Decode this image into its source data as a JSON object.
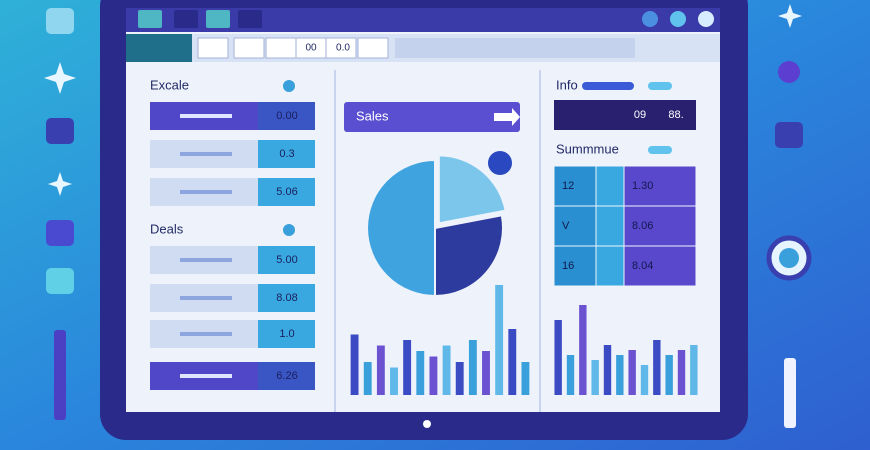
{
  "toolbar": {
    "cells": [
      "00",
      "0.0"
    ]
  },
  "left_panel": {
    "sections": [
      {
        "title": "Excale",
        "rows": [
          "0.00",
          "0.3",
          "5.06"
        ]
      },
      {
        "title": "Deals",
        "rows": [
          "5.00",
          "8.08",
          "1.0",
          "6.26"
        ]
      }
    ]
  },
  "middle_panel": {
    "button": "Sales",
    "pie": {
      "values": [
        50,
        28,
        22
      ],
      "colors": [
        "#3fa3e0",
        "#2d3a9e",
        "#7cc6ec"
      ]
    },
    "bars": {
      "values": [
        55,
        30,
        45,
        25,
        50,
        40,
        35,
        45,
        30,
        50,
        40,
        100,
        60,
        30
      ],
      "colors": [
        "#3a4bc4",
        "#3aa0dc",
        "#6a52d0",
        "#5fb8e8"
      ]
    }
  },
  "right_panel": {
    "info_title": "Info",
    "info_row": [
      "09",
      "88."
    ],
    "summary_title": "Summmue",
    "table": {
      "rows": [
        [
          "12",
          "1.30"
        ],
        [
          "V",
          "8.06"
        ],
        [
          "16",
          "8.04"
        ]
      ]
    },
    "bars": {
      "values": [
        75,
        40,
        90,
        35,
        50,
        40,
        45,
        30,
        55,
        40,
        45,
        50
      ],
      "colors": [
        "#3a4bc4",
        "#3aa0dc",
        "#6a52d0",
        "#5fb8e8"
      ]
    }
  }
}
